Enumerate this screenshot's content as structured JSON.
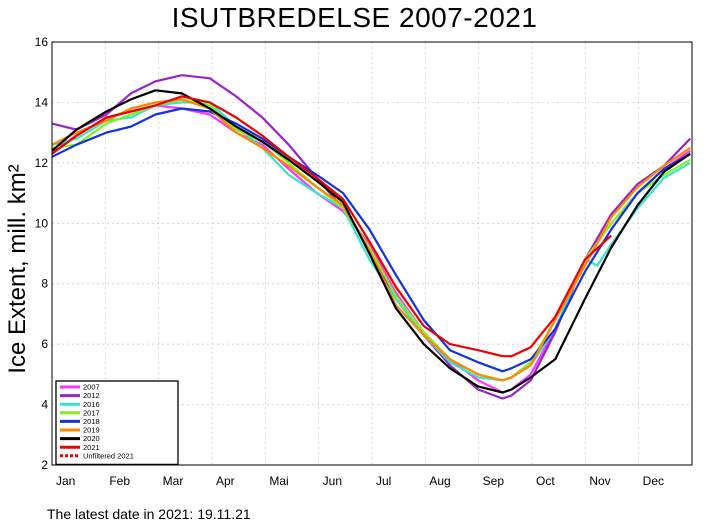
{
  "chart_data": {
    "type": "line",
    "title": "ISUTBREDELSE 2007-2021",
    "ylabel": "Ice Extent, mill. km²",
    "xlabel": "",
    "months": [
      "Jan",
      "Feb",
      "Mar",
      "Apr",
      "Mai",
      "Jun",
      "Jul",
      "Aug",
      "Sep",
      "Oct",
      "Nov",
      "Dec"
    ],
    "yticks": [
      2,
      4,
      6,
      8,
      10,
      12,
      14,
      16
    ],
    "ylim": [
      2,
      16
    ],
    "xlim_day": [
      1,
      366
    ],
    "grid": true,
    "legend_position": "bottom-left",
    "series": [
      {
        "name": "2007",
        "color": "#ff33ff",
        "dashed": false,
        "points": [
          [
            1,
            12.4
          ],
          [
            15,
            12.9
          ],
          [
            32,
            13.5
          ],
          [
            46,
            13.7
          ],
          [
            60,
            13.9
          ],
          [
            75,
            13.8
          ],
          [
            91,
            13.6
          ],
          [
            106,
            13.0
          ],
          [
            121,
            12.6
          ],
          [
            136,
            11.8
          ],
          [
            152,
            11.0
          ],
          [
            167,
            10.4
          ],
          [
            182,
            9.3
          ],
          [
            197,
            7.7
          ],
          [
            213,
            6.4
          ],
          [
            228,
            5.5
          ],
          [
            244,
            4.8
          ],
          [
            258,
            4.4
          ],
          [
            263,
            4.5
          ],
          [
            274,
            5.0
          ],
          [
            288,
            6.5
          ],
          [
            305,
            8.8
          ],
          [
            320,
            10.0
          ],
          [
            335,
            11.0
          ],
          [
            350,
            11.8
          ],
          [
            365,
            12.4
          ]
        ]
      },
      {
        "name": "2012",
        "color": "#9922cc",
        "dashed": false,
        "points": [
          [
            1,
            13.3
          ],
          [
            15,
            13.1
          ],
          [
            32,
            13.6
          ],
          [
            46,
            14.3
          ],
          [
            60,
            14.7
          ],
          [
            75,
            14.9
          ],
          [
            91,
            14.8
          ],
          [
            106,
            14.2
          ],
          [
            121,
            13.5
          ],
          [
            136,
            12.6
          ],
          [
            152,
            11.5
          ],
          [
            167,
            10.5
          ],
          [
            182,
            9.2
          ],
          [
            197,
            7.5
          ],
          [
            213,
            6.3
          ],
          [
            228,
            5.3
          ],
          [
            244,
            4.5
          ],
          [
            258,
            4.2
          ],
          [
            263,
            4.3
          ],
          [
            274,
            4.8
          ],
          [
            288,
            6.4
          ],
          [
            305,
            8.8
          ],
          [
            320,
            10.3
          ],
          [
            335,
            11.3
          ],
          [
            350,
            11.9
          ],
          [
            365,
            12.8
          ]
        ]
      },
      {
        "name": "2016",
        "color": "#33e6cc",
        "dashed": false,
        "points": [
          [
            1,
            12.6
          ],
          [
            15,
            12.8
          ],
          [
            32,
            13.4
          ],
          [
            46,
            13.5
          ],
          [
            60,
            13.9
          ],
          [
            75,
            14.0
          ],
          [
            91,
            14.0
          ],
          [
            106,
            13.2
          ],
          [
            121,
            12.5
          ],
          [
            136,
            11.6
          ],
          [
            152,
            11.0
          ],
          [
            167,
            10.5
          ],
          [
            182,
            8.8
          ],
          [
            197,
            7.5
          ],
          [
            213,
            6.3
          ],
          [
            228,
            5.4
          ],
          [
            244,
            4.9
          ],
          [
            258,
            4.8
          ],
          [
            263,
            4.9
          ],
          [
            274,
            5.3
          ],
          [
            288,
            6.5
          ],
          [
            305,
            8.8
          ],
          [
            312,
            8.6
          ],
          [
            320,
            9.3
          ],
          [
            335,
            10.5
          ],
          [
            350,
            11.5
          ],
          [
            365,
            12.0
          ]
        ]
      },
      {
        "name": "2017",
        "color": "#88ee22",
        "dashed": false,
        "points": [
          [
            1,
            12.5
          ],
          [
            15,
            12.6
          ],
          [
            32,
            13.3
          ],
          [
            46,
            13.6
          ],
          [
            60,
            13.9
          ],
          [
            75,
            14.1
          ],
          [
            91,
            13.9
          ],
          [
            106,
            13.1
          ],
          [
            121,
            12.7
          ],
          [
            136,
            12.0
          ],
          [
            152,
            11.2
          ],
          [
            167,
            10.5
          ],
          [
            182,
            9.2
          ],
          [
            197,
            7.6
          ],
          [
            213,
            6.4
          ],
          [
            228,
            5.5
          ],
          [
            244,
            5.0
          ],
          [
            258,
            4.8
          ],
          [
            263,
            4.9
          ],
          [
            274,
            5.4
          ],
          [
            288,
            6.8
          ],
          [
            305,
            8.8
          ],
          [
            320,
            10.0
          ],
          [
            335,
            11.0
          ],
          [
            350,
            11.6
          ],
          [
            365,
            12.1
          ]
        ]
      },
      {
        "name": "2018",
        "color": "#1133dd",
        "dashed": false,
        "points": [
          [
            1,
            12.2
          ],
          [
            15,
            12.6
          ],
          [
            32,
            13.0
          ],
          [
            46,
            13.2
          ],
          [
            60,
            13.6
          ],
          [
            75,
            13.8
          ],
          [
            91,
            13.7
          ],
          [
            106,
            13.3
          ],
          [
            121,
            12.8
          ],
          [
            136,
            12.2
          ],
          [
            152,
            11.6
          ],
          [
            167,
            11.0
          ],
          [
            182,
            9.8
          ],
          [
            197,
            8.3
          ],
          [
            213,
            6.8
          ],
          [
            228,
            5.8
          ],
          [
            244,
            5.4
          ],
          [
            258,
            5.1
          ],
          [
            263,
            5.2
          ],
          [
            274,
            5.5
          ],
          [
            288,
            6.5
          ],
          [
            305,
            8.4
          ],
          [
            320,
            9.8
          ],
          [
            335,
            11.0
          ],
          [
            350,
            11.8
          ],
          [
            365,
            12.3
          ]
        ]
      },
      {
        "name": "2019",
        "color": "#ff8800",
        "dashed": false,
        "points": [
          [
            1,
            12.6
          ],
          [
            15,
            13.0
          ],
          [
            32,
            13.4
          ],
          [
            46,
            13.8
          ],
          [
            60,
            14.0
          ],
          [
            75,
            14.1
          ],
          [
            91,
            13.8
          ],
          [
            106,
            13.0
          ],
          [
            121,
            12.5
          ],
          [
            136,
            11.9
          ],
          [
            152,
            11.2
          ],
          [
            167,
            10.6
          ],
          [
            182,
            9.1
          ],
          [
            197,
            7.3
          ],
          [
            213,
            6.3
          ],
          [
            228,
            5.5
          ],
          [
            244,
            5.0
          ],
          [
            258,
            4.8
          ],
          [
            263,
            4.9
          ],
          [
            274,
            5.3
          ],
          [
            288,
            6.8
          ],
          [
            305,
            8.6
          ],
          [
            320,
            10.2
          ],
          [
            335,
            11.2
          ],
          [
            350,
            11.9
          ],
          [
            365,
            12.5
          ]
        ]
      },
      {
        "name": "2020",
        "color": "#000000",
        "dashed": false,
        "points": [
          [
            1,
            12.4
          ],
          [
            15,
            13.1
          ],
          [
            32,
            13.7
          ],
          [
            46,
            14.1
          ],
          [
            60,
            14.4
          ],
          [
            75,
            14.3
          ],
          [
            91,
            13.8
          ],
          [
            106,
            13.2
          ],
          [
            121,
            12.7
          ],
          [
            136,
            12.1
          ],
          [
            152,
            11.4
          ],
          [
            167,
            10.7
          ],
          [
            182,
            9.0
          ],
          [
            197,
            7.2
          ],
          [
            213,
            6.0
          ],
          [
            228,
            5.2
          ],
          [
            244,
            4.6
          ],
          [
            258,
            4.4
          ],
          [
            263,
            4.5
          ],
          [
            274,
            4.9
          ],
          [
            288,
            5.5
          ],
          [
            305,
            7.5
          ],
          [
            320,
            9.2
          ],
          [
            335,
            10.6
          ],
          [
            350,
            11.7
          ],
          [
            365,
            12.3
          ]
        ]
      },
      {
        "name": "2021",
        "color": "#ee0000",
        "dashed": false,
        "points": [
          [
            1,
            12.3
          ],
          [
            15,
            12.9
          ],
          [
            32,
            13.5
          ],
          [
            46,
            13.7
          ],
          [
            60,
            13.9
          ],
          [
            75,
            14.2
          ],
          [
            91,
            14.0
          ],
          [
            106,
            13.5
          ],
          [
            121,
            12.9
          ],
          [
            136,
            12.2
          ],
          [
            152,
            11.5
          ],
          [
            167,
            10.8
          ],
          [
            182,
            9.4
          ],
          [
            197,
            7.9
          ],
          [
            213,
            6.6
          ],
          [
            228,
            6.0
          ],
          [
            244,
            5.8
          ],
          [
            258,
            5.6
          ],
          [
            263,
            5.6
          ],
          [
            274,
            5.9
          ],
          [
            288,
            6.9
          ],
          [
            305,
            8.8
          ],
          [
            320,
            9.6
          ]
        ]
      },
      {
        "name": "Unfiltered 2021",
        "color": "#ee0000",
        "dashed": true,
        "points": []
      }
    ]
  },
  "footnote": "The latest date in 2021: 19.11.21"
}
